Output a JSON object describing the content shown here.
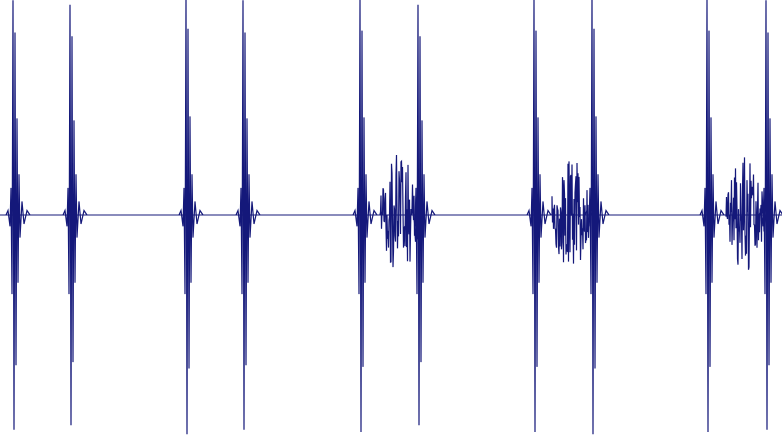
{
  "chart_data": {
    "type": "line",
    "title": "",
    "xlabel": "",
    "ylabel": "",
    "xlim": [
      0,
      782
    ],
    "ylim": [
      -1.0,
      1.0
    ],
    "grid": false,
    "legend": "none",
    "baseline": 0.0,
    "events": [
      {
        "t": 14,
        "amp": 0.95,
        "kind": "impulse"
      },
      {
        "t": 71,
        "amp": 0.93,
        "kind": "impulse"
      },
      {
        "t": 187,
        "amp": 0.97,
        "kind": "impulse"
      },
      {
        "t": 244,
        "amp": 0.95,
        "kind": "impulse"
      },
      {
        "t": 361,
        "amp": 0.96,
        "kind": "impulse"
      },
      {
        "t": 380,
        "amp": 0.28,
        "kind": "burst",
        "span": 40
      },
      {
        "t": 419,
        "amp": 0.93,
        "kind": "impulse"
      },
      {
        "t": 535,
        "amp": 0.96,
        "kind": "impulse"
      },
      {
        "t": 552,
        "amp": 0.25,
        "kind": "burst",
        "span": 38
      },
      {
        "t": 593,
        "amp": 0.97,
        "kind": "impulse"
      },
      {
        "t": 708,
        "amp": 0.96,
        "kind": "impulse"
      },
      {
        "t": 726,
        "amp": 0.26,
        "kind": "burst",
        "span": 38
      },
      {
        "t": 767,
        "amp": 0.95,
        "kind": "impulse"
      }
    ]
  },
  "style": {
    "wave_color": "#14187a",
    "background": "#ffffff"
  }
}
